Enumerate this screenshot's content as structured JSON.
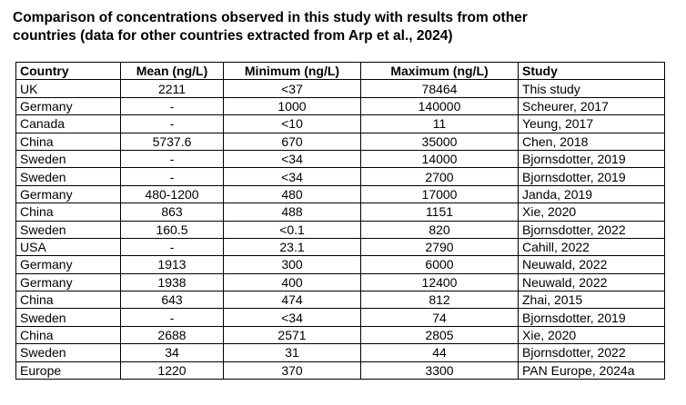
{
  "caption": {
    "line1": "Comparison of concentrations observed in this study with results from other",
    "line2": "countries (data for other countries extracted from Arp et al., 2024)"
  },
  "table": {
    "headers": [
      "Country",
      "Mean (ng/L)",
      "Minimum (ng/L)",
      "Maximum (ng/L)",
      "Study"
    ],
    "rows": [
      [
        "UK",
        "2211",
        "<37",
        "78464",
        "This study"
      ],
      [
        "Germany",
        "-",
        "1000",
        "140000",
        "Scheurer, 2017"
      ],
      [
        "Canada",
        "-",
        "<10",
        "11",
        "Yeung, 2017"
      ],
      [
        "China",
        "5737.6",
        "670",
        "35000",
        "Chen, 2018"
      ],
      [
        "Sweden",
        "-",
        "<34",
        "14000",
        "Bjornsdotter, 2019"
      ],
      [
        "Sweden",
        "-",
        "<34",
        "2700",
        "Bjornsdotter, 2019"
      ],
      [
        "Germany",
        "480-1200",
        "480",
        "17000",
        "Janda, 2019"
      ],
      [
        "China",
        "863",
        "488",
        "1151",
        "Xie, 2020"
      ],
      [
        "Sweden",
        "160.5",
        "<0.1",
        "820",
        "Bjornsdotter, 2022"
      ],
      [
        "USA",
        "-",
        "23.1",
        "2790",
        "Cahill, 2022"
      ],
      [
        "Germany",
        "1913",
        "300",
        "6000",
        "Neuwald, 2022"
      ],
      [
        "Germany",
        "1938",
        "400",
        "12400",
        "Neuwald, 2022"
      ],
      [
        "China",
        "643",
        "474",
        "812",
        "Zhai, 2015"
      ],
      [
        "Sweden",
        "-",
        "<34",
        "74",
        "Bjornsdotter, 2019"
      ],
      [
        "China",
        "2688",
        "2571",
        "2805",
        "Xie, 2020"
      ],
      [
        "Sweden",
        "34",
        "31",
        "44",
        "Bjornsdotter, 2022"
      ],
      [
        "Europe",
        "1220",
        "370",
        "3300",
        "PAN Europe, 2024a"
      ]
    ]
  }
}
